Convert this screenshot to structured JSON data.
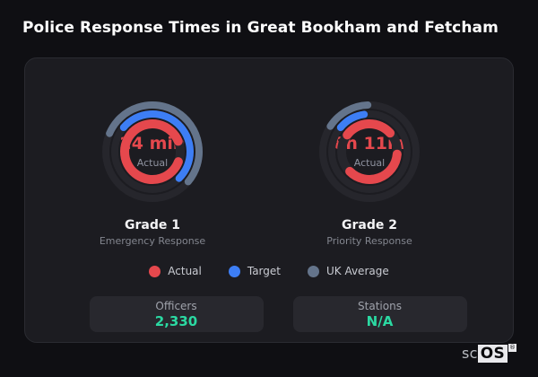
{
  "title": "Police Response Times in Great Bookham and Fetcham",
  "colors": {
    "actual": "#e5484d",
    "target": "#3d7ef5",
    "uk_average": "#64748b",
    "stat_accent": "#2bd9a2",
    "ring_track": "#26262c",
    "card_bg": "#1c1c21",
    "page_bg": "#0f0f13"
  },
  "chart_data": [
    {
      "type": "gauge",
      "name": "Grade 1",
      "description": "Emergency Response",
      "center_label": {
        "value": "24 min",
        "caption": "Actual"
      },
      "legend_position": "bottom",
      "rings": [
        {
          "series": "UK Average",
          "color": "#64748b",
          "radius": 52,
          "stroke": 8,
          "arcs": [
            {
              "start_deg": 293,
              "sweep_deg": 197
            }
          ]
        },
        {
          "series": "Target",
          "color": "#3d7ef5",
          "radius": 42,
          "stroke": 8,
          "arcs": [
            {
              "start_deg": 310,
              "sweep_deg": 185
            }
          ]
        },
        {
          "series": "Actual",
          "color": "#e5484d",
          "radius": 31,
          "stroke": 10,
          "arcs": [
            {
              "start_deg": 111,
              "sweep_deg": 204
            },
            {
              "start_deg": 315,
              "sweep_deg": 113
            }
          ]
        }
      ]
    },
    {
      "type": "gauge",
      "name": "Grade 2",
      "description": "Priority Response",
      "center_label": {
        "value": "8h 11m",
        "caption": "Actual"
      },
      "legend_position": "bottom",
      "rings": [
        {
          "series": "UK Average",
          "color": "#64748b",
          "radius": 52,
          "stroke": 8,
          "arcs": [
            {
              "start_deg": 303,
              "sweep_deg": 55
            }
          ]
        },
        {
          "series": "Target",
          "color": "#3d7ef5",
          "radius": 42,
          "stroke": 8,
          "arcs": [
            {
              "start_deg": 310,
              "sweep_deg": 42
            }
          ]
        },
        {
          "series": "Actual",
          "color": "#e5484d",
          "radius": 31,
          "stroke": 10,
          "arcs": [
            {
              "start_deg": 95,
              "sweep_deg": 130
            },
            {
              "start_deg": 307,
              "sweep_deg": 101
            }
          ]
        }
      ]
    }
  ],
  "legend": [
    {
      "label": "Actual",
      "color": "#e5484d"
    },
    {
      "label": "Target",
      "color": "#3d7ef5"
    },
    {
      "label": "UK Average",
      "color": "#64748b"
    }
  ],
  "stats": [
    {
      "label": "Officers",
      "value": "2,330"
    },
    {
      "label": "Stations",
      "value": "N/A"
    }
  ],
  "brand": {
    "prefix": "sc",
    "suffix": "OS",
    "registered": "®"
  }
}
